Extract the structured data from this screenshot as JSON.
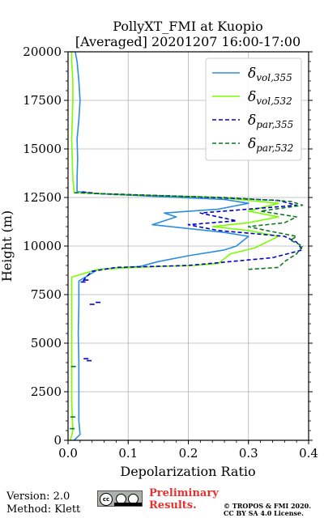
{
  "chart_data": {
    "type": "line",
    "title": "PollyXT_FMI at Kuopio",
    "subtitle": "[Averaged] 20201207 16:00-17:00",
    "xlabel": "Depolarization Ratio",
    "ylabel": "Height (m)",
    "xlim": [
      0,
      0.4
    ],
    "ylim": [
      0,
      20000
    ],
    "xticks": [
      0.0,
      0.1,
      0.2,
      0.3,
      0.4
    ],
    "xtick_labels": [
      "0.0",
      "0.1",
      "0.2",
      "0.3",
      "0.4"
    ],
    "yticks": [
      0,
      2500,
      5000,
      7500,
      10000,
      12500,
      15000,
      17500,
      20000
    ],
    "ytick_labels": [
      "0",
      "2500",
      "5000",
      "7500",
      "10000",
      "12500",
      "15000",
      "17500",
      "20000"
    ],
    "grid": true,
    "legend_placement": "top-right",
    "series": [
      {
        "name": "δvol,355",
        "legend": {
          "base": "δ",
          "sub": "vol,355"
        },
        "color": "#2b8de0",
        "style": "solid",
        "points": [
          [
            0.01,
            0
          ],
          [
            0.02,
            300
          ],
          [
            0.018,
            1000
          ],
          [
            0.018,
            2500
          ],
          [
            0.018,
            4000
          ],
          [
            0.017,
            5500
          ],
          [
            0.018,
            7000
          ],
          [
            0.018,
            8200
          ],
          [
            0.05,
            8800
          ],
          [
            0.12,
            8950
          ],
          [
            0.15,
            9200
          ],
          [
            0.2,
            9500
          ],
          [
            0.26,
            9800
          ],
          [
            0.28,
            10000
          ],
          [
            0.3,
            10500
          ],
          [
            0.26,
            10700
          ],
          [
            0.14,
            11100
          ],
          [
            0.18,
            11500
          ],
          [
            0.16,
            11700
          ],
          [
            0.25,
            11900
          ],
          [
            0.3,
            12200
          ],
          [
            0.26,
            12400
          ],
          [
            0.15,
            12550
          ],
          [
            0.05,
            12700
          ],
          [
            0.015,
            12800
          ],
          [
            0.015,
            13500
          ],
          [
            0.016,
            14500
          ],
          [
            0.015,
            15500
          ],
          [
            0.018,
            16500
          ],
          [
            0.02,
            17500
          ],
          [
            0.018,
            18500
          ],
          [
            0.015,
            19500
          ],
          [
            0.012,
            20000
          ]
        ]
      },
      {
        "name": "δvol,532",
        "legend": {
          "base": "δ",
          "sub": "vol,532"
        },
        "color": "#7cfc00",
        "style": "solid",
        "points": [
          [
            0.004,
            0
          ],
          [
            0.008,
            500
          ],
          [
            0.006,
            2000
          ],
          [
            0.006,
            4000
          ],
          [
            0.006,
            6000
          ],
          [
            0.006,
            7500
          ],
          [
            0.006,
            8400
          ],
          [
            0.05,
            8800
          ],
          [
            0.15,
            8950
          ],
          [
            0.21,
            9000
          ],
          [
            0.25,
            9100
          ],
          [
            0.27,
            9600
          ],
          [
            0.31,
            9900
          ],
          [
            0.33,
            10200
          ],
          [
            0.35,
            10500
          ],
          [
            0.3,
            10800
          ],
          [
            0.24,
            11000
          ],
          [
            0.3,
            11200
          ],
          [
            0.35,
            11500
          ],
          [
            0.3,
            11800
          ],
          [
            0.35,
            12200
          ],
          [
            0.25,
            12500
          ],
          [
            0.1,
            12650
          ],
          [
            0.01,
            12750
          ],
          [
            0.008,
            13500
          ],
          [
            0.007,
            14500
          ],
          [
            0.006,
            15500
          ],
          [
            0.007,
            16500
          ],
          [
            0.008,
            17500
          ],
          [
            0.008,
            18500
          ],
          [
            0.006,
            19500
          ],
          [
            0.006,
            20000
          ]
        ]
      },
      {
        "name": "δpar,355",
        "legend": {
          "base": "δ",
          "sub": "par,355"
        },
        "color": "#0000cd",
        "style": "dashed",
        "points": [
          [
            0.025,
            8200
          ],
          [
            0.03,
            8400
          ],
          [
            0.04,
            8700
          ],
          [
            0.08,
            8900
          ],
          [
            0.2,
            9000
          ],
          [
            0.34,
            9400
          ],
          [
            0.39,
            9800
          ],
          [
            0.38,
            10200
          ],
          [
            0.36,
            10500
          ],
          [
            0.25,
            10800
          ],
          [
            0.2,
            11100
          ],
          [
            0.28,
            11300
          ],
          [
            0.22,
            11700
          ],
          [
            0.3,
            11900
          ],
          [
            0.38,
            12100
          ],
          [
            0.35,
            12350
          ],
          [
            0.2,
            12550
          ],
          [
            0.05,
            12700
          ],
          [
            0.02,
            12800
          ]
        ]
      },
      {
        "name": "δpar,532",
        "legend": {
          "base": "δ",
          "sub": "par,532"
        },
        "color": "#0a7a1e",
        "style": "dashed",
        "points": [
          [
            0.3,
            8800
          ],
          [
            0.35,
            8900
          ],
          [
            0.36,
            9200
          ],
          [
            0.38,
            9600
          ],
          [
            0.39,
            10000
          ],
          [
            0.37,
            10300
          ],
          [
            0.38,
            10500
          ],
          [
            0.33,
            10800
          ],
          [
            0.3,
            11000
          ],
          [
            0.36,
            11200
          ],
          [
            0.38,
            11500
          ],
          [
            0.32,
            11800
          ],
          [
            0.39,
            12100
          ],
          [
            0.37,
            12300
          ],
          [
            0.26,
            12500
          ],
          [
            0.08,
            12650
          ],
          [
            0.01,
            12750
          ]
        ]
      }
    ],
    "stray_markers": [
      {
        "color": "#0000cd",
        "points": [
          [
            0.04,
            7000
          ],
          [
            0.05,
            7100
          ],
          [
            0.03,
            4200
          ],
          [
            0.035,
            4100
          ],
          [
            0.025,
            8150
          ],
          [
            0.03,
            8250
          ]
        ]
      },
      {
        "color": "#0a7a1e",
        "points": [
          [
            0.008,
            1200
          ],
          [
            0.007,
            600
          ],
          [
            0.009,
            3800
          ]
        ]
      }
    ]
  },
  "footer": {
    "version": "Version: 2.0",
    "method": "Method: Klett",
    "preliminary_line1": "Preliminary",
    "preliminary_line2": "Results.",
    "copyright_line1": "© TROPOS & FMI 2020.",
    "copyright_line2": "CC BY SA 4.0 License.",
    "license_badge": "cc"
  }
}
